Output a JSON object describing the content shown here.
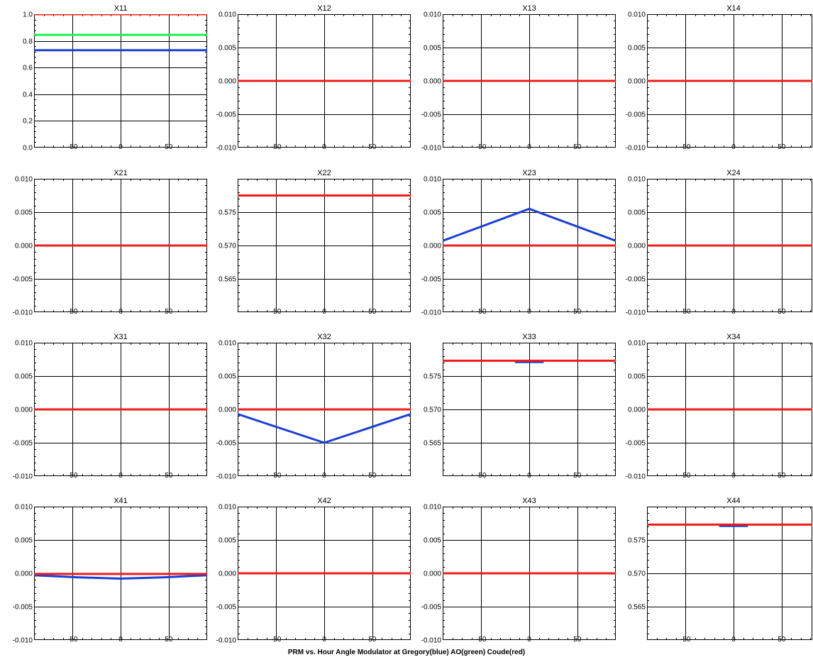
{
  "colors": {
    "gregory": "#1a3fd6",
    "ao": "#22ee55",
    "coude": "#ee1c1c",
    "axis": "#000000"
  },
  "figure_caption": "PRM vs. Hour Angle Modulator at Gregory(blue) AO(green) Coude(red)",
  "chart_data": {
    "type": "line",
    "panels": [
      {
        "title": "X11",
        "ylim": [
          0,
          1.0
        ],
        "yticks": [
          "0.0",
          "0.2",
          "0.4",
          "0.6",
          "0.8",
          "1.0"
        ],
        "xlim": [
          -90,
          90
        ],
        "xticks": [
          "-50",
          "0",
          "50"
        ],
        "series": [
          {
            "color": "coude",
            "x": [
              -90,
              90
            ],
            "y": [
              1.0,
              1.0
            ]
          },
          {
            "color": "ao",
            "x": [
              -90,
              90
            ],
            "y": [
              0.845,
              0.845
            ]
          },
          {
            "color": "gregory",
            "x": [
              -90,
              90
            ],
            "y": [
              0.73,
              0.73
            ]
          }
        ]
      },
      {
        "title": "X12",
        "ylim": [
          -0.01,
          0.01
        ],
        "yticks": [
          "-0.010",
          "-0.005",
          "0.000",
          "0.005",
          "0.010"
        ],
        "xlim": [
          -90,
          90
        ],
        "xticks": [
          "-50",
          "0",
          "50"
        ],
        "series": [
          {
            "color": "coude",
            "x": [
              -90,
              90
            ],
            "y": [
              0,
              0
            ]
          }
        ]
      },
      {
        "title": "X13",
        "ylim": [
          -0.01,
          0.01
        ],
        "yticks": [
          "-0.010",
          "-0.005",
          "0.000",
          "0.005",
          "0.010"
        ],
        "xlim": [
          -90,
          90
        ],
        "xticks": [
          "-50",
          "0",
          "50"
        ],
        "series": [
          {
            "color": "coude",
            "x": [
              -90,
              90
            ],
            "y": [
              0,
              0
            ]
          }
        ]
      },
      {
        "title": "X14",
        "ylim": [
          -0.01,
          0.01
        ],
        "yticks": [
          "-0.010",
          "-0.005",
          "0.000",
          "0.005",
          "0.010"
        ],
        "xlim": [
          -90,
          90
        ],
        "xticks": [
          "-50",
          "0",
          "50"
        ],
        "series": [
          {
            "color": "coude",
            "x": [
              -90,
              90
            ],
            "y": [
              0,
              0
            ]
          }
        ]
      },
      {
        "title": "X21",
        "ylim": [
          -0.01,
          0.01
        ],
        "yticks": [
          "-0.010",
          "-0.005",
          "0.000",
          "0.005",
          "0.010"
        ],
        "xlim": [
          -90,
          90
        ],
        "xticks": [
          "-50",
          "0",
          "50"
        ],
        "series": [
          {
            "color": "coude",
            "x": [
              -90,
              90
            ],
            "y": [
              0,
              0
            ]
          }
        ]
      },
      {
        "title": "X22",
        "ylim": [
          0.56,
          0.58
        ],
        "yticks": [
          "0.565",
          "0.570",
          "0.575"
        ],
        "xlim": [
          -90,
          90
        ],
        "xticks": [
          "-50",
          "0",
          "50"
        ],
        "series": [
          {
            "color": "coude",
            "x": [
              -90,
              90
            ],
            "y": [
              0.5775,
              0.5775
            ]
          }
        ]
      },
      {
        "title": "X23",
        "ylim": [
          -0.01,
          0.01
        ],
        "yticks": [
          "-0.010",
          "-0.005",
          "0.000",
          "0.005",
          "0.010"
        ],
        "xlim": [
          -90,
          90
        ],
        "xticks": [
          "-50",
          "0",
          "50"
        ],
        "series": [
          {
            "color": "gregory",
            "x": [
              -90,
              0,
              90
            ],
            "y": [
              0.0007,
              0.0055,
              0.0007
            ]
          },
          {
            "color": "coude",
            "x": [
              -90,
              90
            ],
            "y": [
              0,
              0
            ]
          }
        ]
      },
      {
        "title": "X24",
        "ylim": [
          -0.01,
          0.01
        ],
        "yticks": [
          "-0.010",
          "-0.005",
          "0.000",
          "0.005",
          "0.010"
        ],
        "xlim": [
          -90,
          90
        ],
        "xticks": [
          "-50",
          "0",
          "50"
        ],
        "series": [
          {
            "color": "coude",
            "x": [
              -90,
              90
            ],
            "y": [
              0,
              0
            ]
          }
        ]
      },
      {
        "title": "X31",
        "ylim": [
          -0.01,
          0.01
        ],
        "yticks": [
          "-0.010",
          "-0.005",
          "0.000",
          "0.005",
          "0.010"
        ],
        "xlim": [
          -90,
          90
        ],
        "xticks": [
          "-50",
          "0",
          "50"
        ],
        "series": [
          {
            "color": "coude",
            "x": [
              -90,
              90
            ],
            "y": [
              0,
              0
            ]
          }
        ]
      },
      {
        "title": "X32",
        "ylim": [
          -0.01,
          0.01
        ],
        "yticks": [
          "-0.010",
          "-0.005",
          "0.000",
          "0.005",
          "0.010"
        ],
        "xlim": [
          -90,
          90
        ],
        "xticks": [
          "-50",
          "0",
          "50"
        ],
        "series": [
          {
            "color": "gregory",
            "x": [
              -90,
              0,
              90
            ],
            "y": [
              -0.0007,
              -0.005,
              -0.0007
            ]
          },
          {
            "color": "coude",
            "x": [
              -90,
              90
            ],
            "y": [
              0,
              0
            ]
          }
        ]
      },
      {
        "title": "X33",
        "ylim": [
          0.56,
          0.58
        ],
        "yticks": [
          "0.565",
          "0.570",
          "0.575"
        ],
        "xlim": [
          -90,
          90
        ],
        "xticks": [
          "-50",
          "0",
          "50"
        ],
        "series": [
          {
            "color": "gregory",
            "x": [
              -15,
              15
            ],
            "y": [
              0.5771,
              0.5771
            ]
          },
          {
            "color": "coude",
            "x": [
              -90,
              90
            ],
            "y": [
              0.5773,
              0.5773
            ]
          }
        ]
      },
      {
        "title": "X34",
        "ylim": [
          -0.01,
          0.01
        ],
        "yticks": [
          "-0.010",
          "-0.005",
          "0.000",
          "0.005",
          "0.010"
        ],
        "xlim": [
          -90,
          90
        ],
        "xticks": [
          "-50",
          "0",
          "50"
        ],
        "series": [
          {
            "color": "coude",
            "x": [
              -90,
              90
            ],
            "y": [
              0,
              0
            ]
          }
        ]
      },
      {
        "title": "X41",
        "ylim": [
          -0.01,
          0.01
        ],
        "yticks": [
          "-0.010",
          "-0.005",
          "0.000",
          "0.005",
          "0.010"
        ],
        "xlim": [
          -90,
          90
        ],
        "xticks": [
          "-50",
          "0",
          "50"
        ],
        "series": [
          {
            "color": "gregory",
            "x": [
              -90,
              -45,
              0,
              45,
              90
            ],
            "y": [
              -0.0003,
              -0.0006,
              -0.0008,
              -0.0006,
              -0.0003
            ]
          },
          {
            "color": "coude",
            "x": [
              -90,
              90
            ],
            "y": [
              -0.0001,
              -0.0001
            ]
          }
        ]
      },
      {
        "title": "X42",
        "ylim": [
          -0.01,
          0.01
        ],
        "yticks": [
          "-0.010",
          "-0.005",
          "0.000",
          "0.005",
          "0.010"
        ],
        "xlim": [
          -90,
          90
        ],
        "xticks": [
          "-50",
          "0",
          "50"
        ],
        "series": [
          {
            "color": "coude",
            "x": [
              -90,
              90
            ],
            "y": [
              0,
              0
            ]
          }
        ]
      },
      {
        "title": "X43",
        "ylim": [
          -0.01,
          0.01
        ],
        "yticks": [
          "-0.010",
          "-0.005",
          "0.000",
          "0.005",
          "0.010"
        ],
        "xlim": [
          -90,
          90
        ],
        "xticks": [
          "-50",
          "0",
          "50"
        ],
        "series": [
          {
            "color": "coude",
            "x": [
              -90,
              90
            ],
            "y": [
              0,
              0
            ]
          }
        ]
      },
      {
        "title": "X44",
        "ylim": [
          0.56,
          0.58
        ],
        "yticks": [
          "0.565",
          "0.570",
          "0.575"
        ],
        "xlim": [
          -90,
          90
        ],
        "xticks": [
          "-50",
          "0",
          "50"
        ],
        "series": [
          {
            "color": "gregory",
            "x": [
              -15,
              15
            ],
            "y": [
              0.5771,
              0.5771
            ]
          },
          {
            "color": "coude",
            "x": [
              -90,
              90
            ],
            "y": [
              0.5773,
              0.5773
            ]
          }
        ]
      }
    ]
  }
}
